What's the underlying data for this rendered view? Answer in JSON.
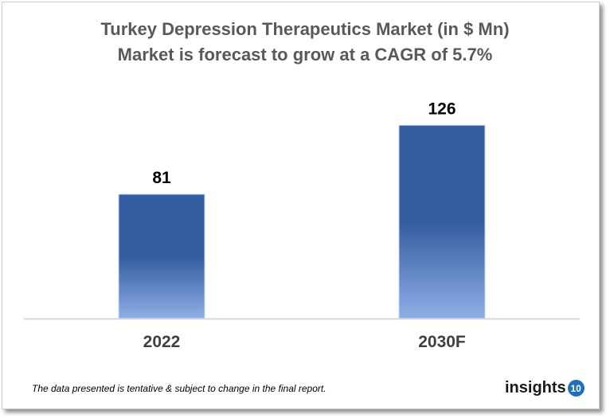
{
  "chart_data": {
    "type": "bar",
    "title": "Turkey Depression Therapeutics Market (in $ Mn)",
    "subtitle": "Market is forecast to grow at a CAGR of 5.7%",
    "categories": [
      "2022",
      "2030F"
    ],
    "values": [
      81,
      126
    ],
    "data_labels": [
      "81",
      "126"
    ],
    "xlabel": "",
    "ylabel": "",
    "ylim": [
      0,
      126
    ],
    "grid": false,
    "legend": "none",
    "colors": {
      "bar_top": "#345ca0",
      "bar_bottom": "#8eaee6",
      "axis": "#d9d9d9"
    }
  },
  "footer": {
    "note": "The data presented is tentative & subject to change in the final report."
  },
  "logo": {
    "text": "insights",
    "number": "10",
    "color": "#1f6fc0"
  }
}
